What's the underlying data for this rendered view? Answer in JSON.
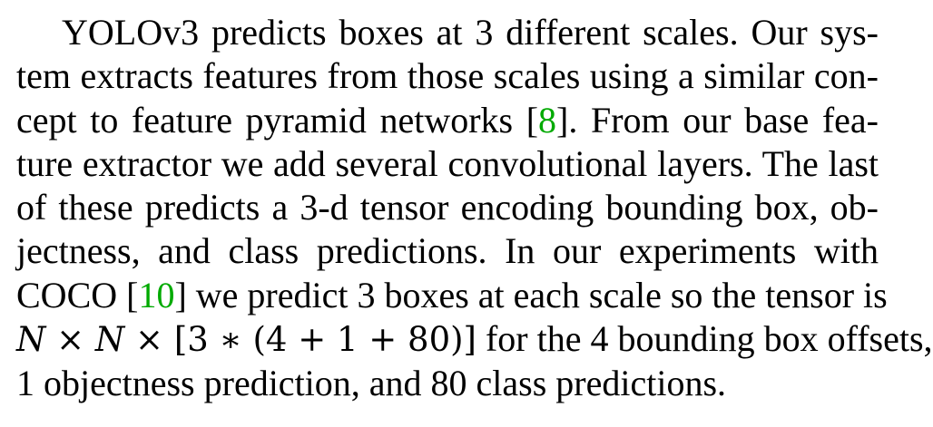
{
  "paragraph": {
    "l1": "YOLOv3 predicts boxes at 3 different scales. Our sys-",
    "l2": "tem extracts features from those scales using a similar con-",
    "l3a": "cept to feature pyramid networks [",
    "cite1": "8",
    "l3b": "]. From our base fea-",
    "l4": "ture extractor we add several convolutional layers. The last",
    "l5": "of these predicts a 3-d tensor encoding bounding box, ob-",
    "l6": "jectness, and class predictions. In our experiments with",
    "l7a": "COCO [",
    "cite2": "10",
    "l7b": "] we predict 3 boxes at each scale so the tensor is",
    "math": {
      "n1": "N",
      "op1": " × ",
      "n2": "N",
      "op2": " × ",
      "expr": "[3 ∗ (4 + 1 + 80)]"
    },
    "l8b": " for the 4 bounding box offsets,",
    "l9": "1 objectness prediction, and 80 class predictions."
  },
  "colors": {
    "text": "#000000",
    "citation": "#00aa00"
  }
}
